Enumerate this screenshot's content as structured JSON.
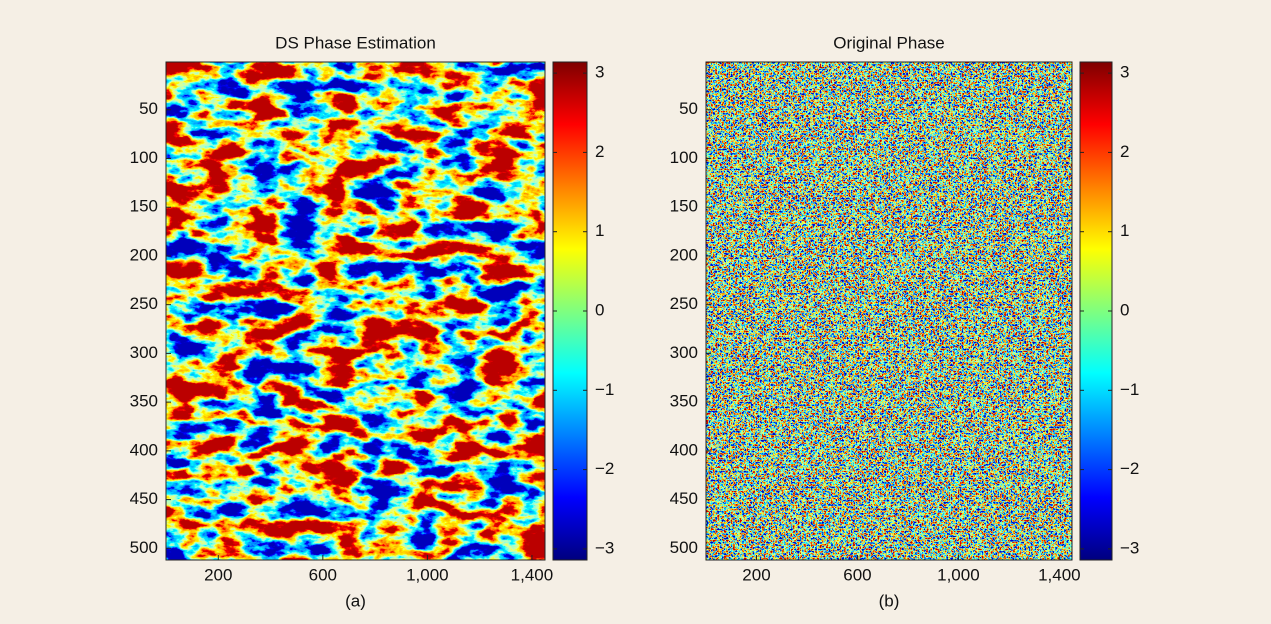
{
  "chart_data": [
    {
      "type": "heatmap",
      "title": "DS Phase Estimation",
      "caption": "(a)",
      "xlim": [
        0,
        1450
      ],
      "xticks": [
        200,
        600,
        {
          "value": 1000,
          "label": "1,000"
        },
        {
          "value": 1400,
          "label": "1,400"
        }
      ],
      "ylim": [
        1,
        512
      ],
      "y_reversed": true,
      "yticks": [
        50,
        100,
        150,
        200,
        250,
        300,
        350,
        400,
        450,
        500
      ],
      "colormap": "jet",
      "colorbar": {
        "clim": [
          -3.14,
          3.14
        ],
        "ticks": [
          {
            "value": -3,
            "label": "−3"
          },
          {
            "value": -2,
            "label": "−2"
          },
          {
            "value": -1,
            "label": "−1"
          },
          0,
          1,
          2,
          3
        ]
      }
    },
    {
      "type": "heatmap",
      "title": "Original Phase",
      "caption": "(b)",
      "xlim": [
        0,
        1450
      ],
      "xticks": [
        200,
        600,
        {
          "value": 1000,
          "label": "1,000"
        },
        {
          "value": 1400,
          "label": "1,400"
        }
      ],
      "ylim": [
        1,
        512
      ],
      "y_reversed": true,
      "yticks": [
        50,
        100,
        150,
        200,
        250,
        300,
        350,
        400,
        450,
        500
      ],
      "colormap": "jet",
      "colorbar": {
        "clim": [
          -3.14,
          3.14
        ],
        "ticks": [
          {
            "value": -3,
            "label": "−3"
          },
          {
            "value": -2,
            "label": "−2"
          },
          {
            "value": -1,
            "label": "−1"
          },
          0,
          1,
          2,
          3
        ]
      }
    }
  ]
}
